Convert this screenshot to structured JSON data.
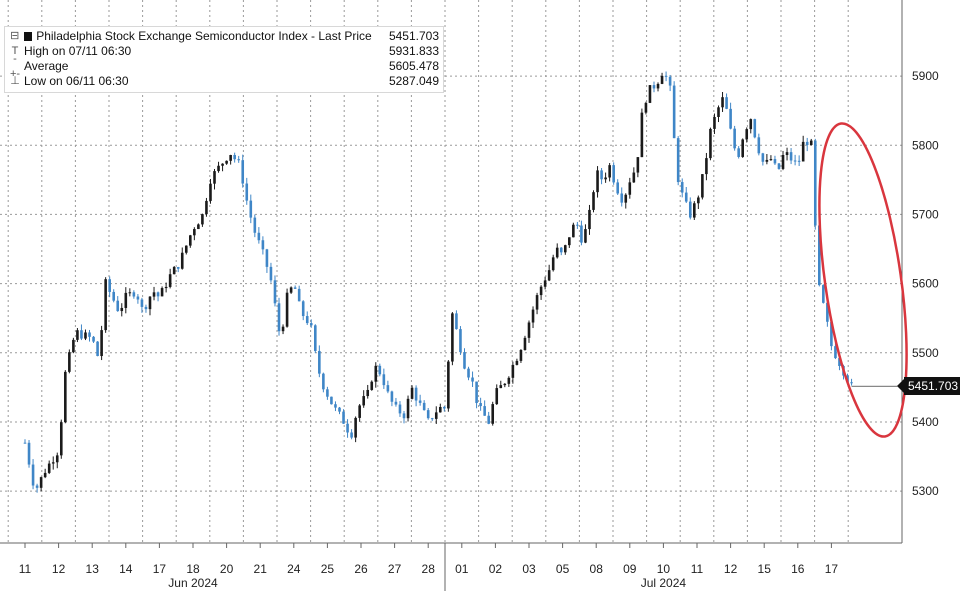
{
  "chart_data": {
    "type": "candlestick",
    "title": "Philadelphia Stock Exchange Semiconductor Index - Last Price",
    "last_price": "5451.703",
    "legend": [
      {
        "label": "Philadelphia Stock Exchange Semiconductor Index - Last Price",
        "value": "5451.703",
        "glyph": "box"
      },
      {
        "label": "High on 07/11 06:30",
        "value": "5931.833",
        "glyph": "T"
      },
      {
        "label": "Average",
        "value": "5605.478",
        "glyph": "+"
      },
      {
        "label": "Low on 06/11 06:30",
        "value": "5287.049",
        "glyph": "⊥"
      }
    ],
    "ylim": [
      5225,
      6010
    ],
    "yticks": [
      5300,
      5400,
      5500,
      5600,
      5700,
      5800,
      5900
    ],
    "x_days": [
      "11",
      "12",
      "13",
      "14",
      "17",
      "18",
      "20",
      "21",
      "24",
      "25",
      "26",
      "27",
      "28",
      "01",
      "02",
      "03",
      "05",
      "08",
      "09",
      "10",
      "11",
      "12",
      "15",
      "16",
      "17"
    ],
    "months": [
      {
        "label": "Jun 2024",
        "day_index": 5
      },
      {
        "label": "Jul 2024",
        "day_index": 19
      }
    ],
    "path": [
      [
        0,
        5370
      ],
      [
        0.3,
        5300
      ],
      [
        0.6,
        5330
      ],
      [
        1.0,
        5360
      ],
      [
        1.2,
        5470
      ],
      [
        1.5,
        5530
      ],
      [
        2.0,
        5520
      ],
      [
        2.2,
        5490
      ],
      [
        2.4,
        5600
      ],
      [
        2.8,
        5560
      ],
      [
        3.0,
        5580
      ],
      [
        3.3,
        5590
      ],
      [
        3.5,
        5560
      ],
      [
        3.8,
        5590
      ],
      [
        4.0,
        5580
      ],
      [
        4.3,
        5610
      ],
      [
        4.6,
        5630
      ],
      [
        5.0,
        5680
      ],
      [
        5.3,
        5700
      ],
      [
        5.5,
        5750
      ],
      [
        5.8,
        5770
      ],
      [
        6.1,
        5790
      ],
      [
        6.4,
        5770
      ],
      [
        6.6,
        5720
      ],
      [
        6.8,
        5680
      ],
      [
        7.1,
        5640
      ],
      [
        7.3,
        5610
      ],
      [
        7.6,
        5520
      ],
      [
        7.8,
        5580
      ],
      [
        8.0,
        5600
      ],
      [
        8.2,
        5560
      ],
      [
        8.5,
        5540
      ],
      [
        8.7,
        5480
      ],
      [
        8.9,
        5450
      ],
      [
        9.2,
        5420
      ],
      [
        9.5,
        5400
      ],
      [
        9.7,
        5380
      ],
      [
        9.9,
        5420
      ],
      [
        10.2,
        5440
      ],
      [
        10.4,
        5480
      ],
      [
        10.6,
        5470
      ],
      [
        10.8,
        5440
      ],
      [
        11.0,
        5420
      ],
      [
        11.3,
        5410
      ],
      [
        11.5,
        5450
      ],
      [
        11.8,
        5420
      ],
      [
        12.0,
        5400
      ],
      [
        12.3,
        5420
      ],
      [
        12.5,
        5420
      ],
      [
        12.7,
        5560
      ],
      [
        12.9,
        5520
      ],
      [
        13.1,
        5480
      ],
      [
        13.3,
        5460
      ],
      [
        13.5,
        5420
      ],
      [
        13.8,
        5400
      ],
      [
        14.0,
        5440
      ],
      [
        14.3,
        5460
      ],
      [
        14.5,
        5480
      ],
      [
        14.7,
        5500
      ],
      [
        14.9,
        5530
      ],
      [
        15.1,
        5560
      ],
      [
        15.3,
        5590
      ],
      [
        15.6,
        5620
      ],
      [
        15.8,
        5650
      ],
      [
        16.0,
        5640
      ],
      [
        16.2,
        5670
      ],
      [
        16.4,
        5690
      ],
      [
        16.6,
        5660
      ],
      [
        16.8,
        5700
      ],
      [
        17.0,
        5760
      ],
      [
        17.2,
        5750
      ],
      [
        17.4,
        5770
      ],
      [
        17.6,
        5740
      ],
      [
        17.8,
        5720
      ],
      [
        18.0,
        5750
      ],
      [
        18.2,
        5770
      ],
      [
        18.4,
        5860
      ],
      [
        18.6,
        5880
      ],
      [
        18.8,
        5890
      ],
      [
        19.0,
        5910
      ],
      [
        19.2,
        5880
      ],
      [
        19.4,
        5760
      ],
      [
        19.6,
        5720
      ],
      [
        19.8,
        5700
      ],
      [
        20.0,
        5720
      ],
      [
        20.2,
        5760
      ],
      [
        20.4,
        5820
      ],
      [
        20.6,
        5850
      ],
      [
        20.8,
        5870
      ],
      [
        21.0,
        5820
      ],
      [
        21.2,
        5780
      ],
      [
        21.4,
        5820
      ],
      [
        21.6,
        5840
      ],
      [
        21.8,
        5800
      ],
      [
        22.0,
        5770
      ],
      [
        22.2,
        5780
      ],
      [
        22.4,
        5760
      ],
      [
        22.6,
        5790
      ],
      [
        22.8,
        5780
      ],
      [
        23.0,
        5770
      ],
      [
        23.2,
        5810
      ],
      [
        23.4,
        5800
      ],
      [
        23.6,
        5600
      ],
      [
        23.8,
        5560
      ],
      [
        24.0,
        5510
      ],
      [
        24.2,
        5490
      ],
      [
        24.4,
        5470
      ],
      [
        24.6,
        5451.703
      ]
    ]
  }
}
